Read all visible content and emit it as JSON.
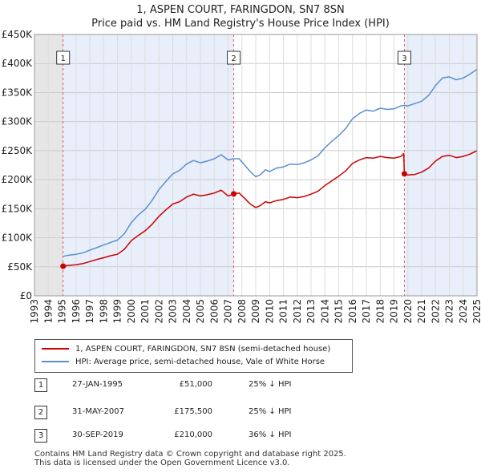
{
  "chart_data": {
    "type": "line",
    "title": "1, ASPEN COURT, FARINGDON, SN7 8SN",
    "subtitle": "Price paid vs. HM Land Registry's House Price Index (HPI)",
    "x_range": [
      1993,
      2025
    ],
    "ylim": [
      0,
      450000
    ],
    "y_ticks": [
      0,
      50000,
      100000,
      150000,
      200000,
      250000,
      300000,
      350000,
      400000,
      450000
    ],
    "y_tick_labels": [
      "£0",
      "£50K",
      "£100K",
      "£150K",
      "£200K",
      "£250K",
      "£300K",
      "£350K",
      "£400K",
      "£450K"
    ],
    "x_ticks": [
      1993,
      1994,
      1995,
      1996,
      1997,
      1998,
      1999,
      2000,
      2001,
      2002,
      2003,
      2004,
      2005,
      2006,
      2007,
      2008,
      2009,
      2010,
      2011,
      2012,
      2013,
      2014,
      2015,
      2016,
      2017,
      2018,
      2019,
      2020,
      2021,
      2022,
      2023,
      2024,
      2025
    ],
    "grid": true,
    "series": [
      {
        "name": "1, ASPEN COURT, FARINGDON, SN7 8SN (semi-detached house)",
        "color": "#cc0000",
        "x": [
          1995.07,
          1995.5,
          1996,
          1996.5,
          1997,
          1997.5,
          1998,
          1998.5,
          1999,
          1999.5,
          2000,
          2000.5,
          2001,
          2001.5,
          2002,
          2002.5,
          2003,
          2003.5,
          2004,
          2004.5,
          2005,
          2005.5,
          2006,
          2006.5,
          2007,
          2007.41,
          2007.8,
          2008.2,
          2008.6,
          2009,
          2009.3,
          2009.7,
          2010,
          2010.5,
          2011,
          2011.5,
          2012,
          2012.5,
          2013,
          2013.5,
          2014,
          2014.5,
          2015,
          2015.5,
          2016,
          2016.5,
          2017,
          2017.5,
          2018,
          2018.5,
          2019,
          2019.5,
          2019.7,
          2019.75,
          2020,
          2020.5,
          2021,
          2021.5,
          2022,
          2022.5,
          2023,
          2023.5,
          2024,
          2024.5,
          2025
        ],
        "y": [
          51000,
          52500,
          53500,
          55500,
          59000,
          62500,
          65500,
          69000,
          71500,
          80000,
          95000,
          104000,
          112000,
          123000,
          137000,
          148000,
          158000,
          162000,
          170000,
          175000,
          172000,
          174000,
          177000,
          182000,
          172000,
          175500,
          177000,
          168000,
          158000,
          152000,
          155000,
          162000,
          160000,
          164000,
          166000,
          170000,
          169000,
          171000,
          175000,
          180000,
          190000,
          198000,
          206000,
          215000,
          228000,
          234000,
          238000,
          237000,
          240000,
          238000,
          237000,
          240000,
          245000,
          210000,
          208000,
          209000,
          213000,
          220000,
          232000,
          240000,
          242000,
          238000,
          240000,
          244000,
          250000
        ]
      },
      {
        "name": "HPI: Average price, semi-detached house, Vale of White Horse",
        "color": "#5b8fd0",
        "x": [
          1995.07,
          1995.5,
          1996,
          1996.5,
          1997,
          1997.5,
          1998,
          1998.5,
          1999,
          1999.5,
          2000,
          2000.5,
          2001,
          2001.5,
          2002,
          2002.5,
          2003,
          2003.5,
          2004,
          2004.5,
          2005,
          2005.5,
          2006,
          2006.5,
          2007,
          2007.41,
          2007.8,
          2008.2,
          2008.6,
          2009,
          2009.3,
          2009.7,
          2010,
          2010.5,
          2011,
          2011.5,
          2012,
          2012.5,
          2013,
          2013.5,
          2014,
          2014.5,
          2015,
          2015.5,
          2016,
          2016.5,
          2017,
          2017.5,
          2018,
          2018.5,
          2019,
          2019.5,
          2019.75,
          2020,
          2020.5,
          2021,
          2021.5,
          2022,
          2022.5,
          2023,
          2023.5,
          2024,
          2024.5,
          2025
        ],
        "y": [
          68000,
          70000,
          71500,
          74000,
          78500,
          83000,
          87500,
          92000,
          96000,
          107000,
          126000,
          139000,
          149000,
          164000,
          183000,
          197000,
          210000,
          216000,
          227000,
          233000,
          229000,
          232000,
          236000,
          243000,
          234000,
          236000,
          236000,
          225000,
          214000,
          205000,
          208000,
          217000,
          214000,
          220000,
          222000,
          227000,
          226000,
          229000,
          234000,
          241000,
          255000,
          266000,
          276000,
          288000,
          305000,
          314000,
          320000,
          318000,
          323000,
          321000,
          322000,
          327000,
          328000,
          327000,
          331000,
          335000,
          345000,
          362000,
          375000,
          377000,
          372000,
          375000,
          382000,
          390000
        ]
      }
    ],
    "sale_markers": [
      {
        "label": "1",
        "x": 1995.07,
        "y": 51000
      },
      {
        "label": "2",
        "x": 2007.41,
        "y": 175500
      },
      {
        "label": "3",
        "x": 2019.75,
        "y": 210000
      }
    ],
    "shade_before": 1995.07
  },
  "legend": {
    "property_label": "1, ASPEN COURT, FARINGDON, SN7 8SN (semi-detached house)",
    "hpi_label": "HPI: Average price, semi-detached house, Vale of White Horse",
    "property_color": "#cc0000",
    "hpi_color": "#5b8fd0"
  },
  "sales": [
    {
      "num": "1",
      "date": "27-JAN-1995",
      "price": "£51,000",
      "hpi": "25% ↓ HPI"
    },
    {
      "num": "2",
      "date": "31-MAY-2007",
      "price": "£175,500",
      "hpi": "25% ↓ HPI"
    },
    {
      "num": "3",
      "date": "30-SEP-2019",
      "price": "£210,000",
      "hpi": "36% ↓ HPI"
    }
  ],
  "footer": {
    "line1": "Contains HM Land Registry data © Crown copyright and database right 2025.",
    "line2": "This data is licensed under the Open Government Licence v3.0."
  }
}
